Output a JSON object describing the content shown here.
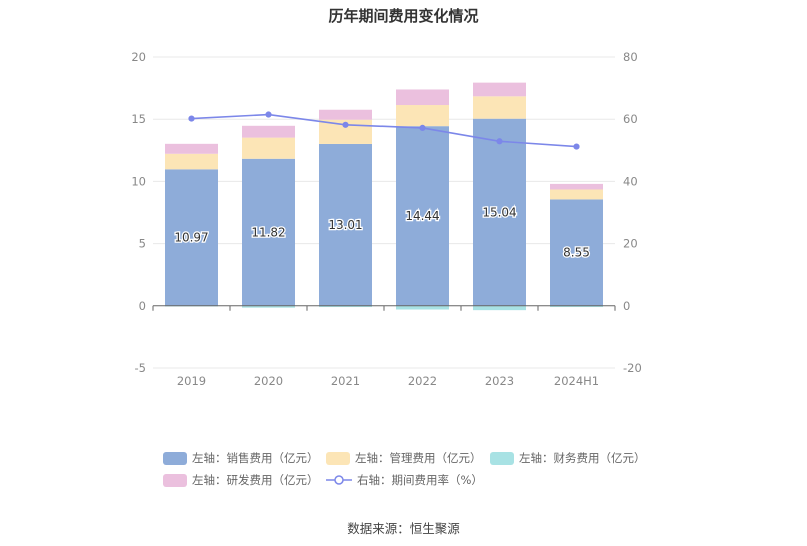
{
  "chart_data": {
    "type": "bar",
    "title": "历年期间费用变化情况",
    "source": "数据来源：恒生聚源",
    "categories": [
      "2019",
      "2020",
      "2021",
      "2022",
      "2023",
      "2024H1"
    ],
    "left_axis": {
      "min": -5,
      "max": 20,
      "ticks": [
        "-5",
        "0",
        "5",
        "10",
        "15",
        "20"
      ]
    },
    "right_axis": {
      "min": -20,
      "max": 80,
      "ticks": [
        "-20",
        "0",
        "20",
        "40",
        "60",
        "80"
      ]
    },
    "grid": true,
    "legend_position": "bottom",
    "series": [
      {
        "name": "左轴：销售费用（亿元）",
        "axis": "left",
        "kind": "bar",
        "color": "#8eacd9",
        "values": [
          10.97,
          11.82,
          13.01,
          14.44,
          15.04,
          8.55
        ],
        "labels": [
          "10.97",
          "11.82",
          "13.01",
          "14.44",
          "15.04",
          "8.55"
        ]
      },
      {
        "name": "左轴：管理费用（亿元）",
        "axis": "left",
        "kind": "bar",
        "color": "#fce5b6",
        "values": [
          1.25,
          1.7,
          1.95,
          1.7,
          1.8,
          0.8
        ]
      },
      {
        "name": "左轴：财务费用（亿元）",
        "axis": "left",
        "kind": "bar",
        "color": "#a8e2e4",
        "values": [
          -0.05,
          -0.15,
          -0.1,
          -0.3,
          -0.35,
          -0.1
        ]
      },
      {
        "name": "左轴：研发费用（亿元）",
        "axis": "left",
        "kind": "bar",
        "color": "#ebc0de",
        "values": [
          0.8,
          0.95,
          0.8,
          1.25,
          1.1,
          0.45
        ]
      },
      {
        "name": "右轴：期间费用率（%）",
        "axis": "right",
        "kind": "line",
        "color": "#7c87e9",
        "values": [
          60.2,
          61.5,
          58.2,
          57.2,
          52.9,
          51.2
        ]
      }
    ]
  }
}
